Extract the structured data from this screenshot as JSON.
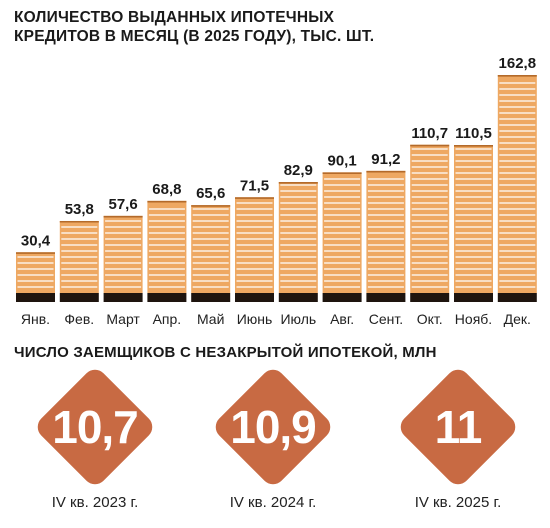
{
  "chart_data": {
    "type": "bar",
    "title": "КОЛИЧЕСТВО ВЫДАННЫХ ИПОТЕЧНЫХ КРЕДИТОВ В МЕСЯЦ (В 2025 ГОДУ), ТЫС. ШТ.",
    "categories": [
      "Янв.",
      "Фев.",
      "Март",
      "Апр.",
      "Май",
      "Июнь",
      "Июль",
      "Авг.",
      "Сент.",
      "Окт.",
      "Нояб.",
      "Дек."
    ],
    "values": [
      30.4,
      53.8,
      57.6,
      68.8,
      65.6,
      71.5,
      82.9,
      90.1,
      91.2,
      110.7,
      110.5,
      162.8
    ],
    "value_labels": [
      "30,4",
      "53,8",
      "57,6",
      "68,8",
      "65,6",
      "71,5",
      "82,9",
      "90,1",
      "91,2",
      "110,7",
      "110,5",
      "162,8"
    ],
    "ylim": [
      0,
      162.8
    ],
    "grid": false,
    "colors": {
      "bar": "#eea862",
      "stripe": "#ffffff",
      "base": "#1e140e",
      "label": "#1a1a1a"
    }
  },
  "borrowers": {
    "title": "ЧИСЛО ЗАЕМЩИКОВ С НЕЗАКРЫТОЙ ИПОТЕКОЙ, МЛН",
    "items": [
      {
        "value": "10,7",
        "caption": "IV кв. 2023 г."
      },
      {
        "value": "10,9",
        "caption": "IV кв. 2024 г."
      },
      {
        "value": "11",
        "caption": "IV кв. 2025 г."
      }
    ],
    "color": "#c86a43"
  }
}
